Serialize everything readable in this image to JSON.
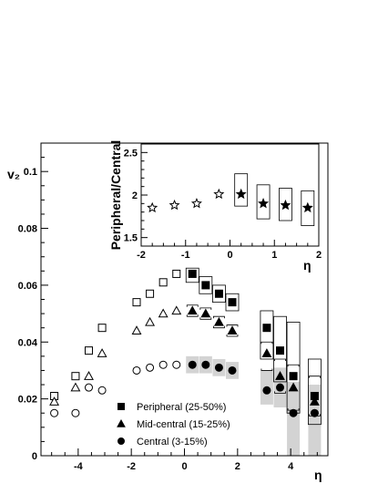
{
  "chart_data": [
    {
      "type": "scatter",
      "title": "",
      "xlabel": "η",
      "ylabel": "v₂",
      "xlim": [
        -5.4,
        5.4
      ],
      "ylim": [
        0,
        0.11
      ],
      "x_ticks": [
        -4,
        -2,
        0,
        2,
        4
      ],
      "x_tick_labels": [
        "-4",
        "-2",
        "0",
        "2",
        "4"
      ],
      "y_ticks": [
        0,
        0.02,
        0.04,
        0.06,
        0.08,
        0.1
      ],
      "y_tick_labels": [
        "0",
        "0.02",
        "0.04",
        "0.06",
        "0.08",
        "0.1"
      ],
      "grid": false,
      "legend_position": "bottom-center",
      "series": [
        {
          "name": "Peripheral (25-50%)",
          "marker": "square",
          "color": "#000000",
          "open": [
            [
              -4.9,
              0.021
            ],
            [
              -4.1,
              0.028
            ],
            [
              -3.6,
              0.037
            ],
            [
              -3.1,
              0.045
            ],
            [
              -1.8,
              0.054
            ],
            [
              -1.3,
              0.057
            ],
            [
              -0.8,
              0.061
            ],
            [
              -0.3,
              0.064
            ]
          ],
          "filled": [
            [
              0.3,
              0.064
            ],
            [
              0.8,
              0.06
            ],
            [
              1.3,
              0.057
            ],
            [
              1.8,
              0.054
            ],
            [
              3.1,
              0.045
            ],
            [
              3.6,
              0.037
            ],
            [
              4.1,
              0.028
            ],
            [
              4.9,
              0.021
            ]
          ]
        },
        {
          "name": "Mid-central (15-25%)",
          "marker": "triangle",
          "color": "#000000",
          "open": [
            [
              -4.9,
              0.019
            ],
            [
              -4.1,
              0.024
            ],
            [
              -3.6,
              0.028
            ],
            [
              -3.1,
              0.036
            ],
            [
              -1.8,
              0.044
            ],
            [
              -1.3,
              0.047
            ],
            [
              -0.8,
              0.05
            ],
            [
              -0.3,
              0.051
            ]
          ],
          "filled": [
            [
              0.3,
              0.051
            ],
            [
              0.8,
              0.05
            ],
            [
              1.3,
              0.047
            ],
            [
              1.8,
              0.044
            ],
            [
              3.1,
              0.036
            ],
            [
              3.6,
              0.028
            ],
            [
              4.1,
              0.024
            ],
            [
              4.9,
              0.019
            ]
          ]
        },
        {
          "name": "Central (3-15%)",
          "marker": "circle",
          "color": "#000000",
          "open": [
            [
              -4.9,
              0.015
            ],
            [
              -4.1,
              0.015
            ],
            [
              -3.6,
              0.024
            ],
            [
              -3.1,
              0.023
            ],
            [
              -1.8,
              0.03
            ],
            [
              -1.3,
              0.031
            ],
            [
              -0.8,
              0.032
            ],
            [
              -0.3,
              0.032
            ]
          ],
          "filled": [
            [
              0.3,
              0.032
            ],
            [
              0.8,
              0.032
            ],
            [
              1.3,
              0.031
            ],
            [
              1.8,
              0.03
            ],
            [
              3.1,
              0.023
            ],
            [
              3.6,
              0.024
            ],
            [
              4.1,
              0.015
            ],
            [
              4.9,
              0.015
            ]
          ]
        }
      ],
      "systematics": {
        "peripheral_boxes": [
          [
            0.3,
            0.061,
            0.066
          ],
          [
            0.8,
            0.057,
            0.063
          ],
          [
            1.3,
            0.054,
            0.06
          ],
          [
            1.8,
            0.051,
            0.057
          ],
          [
            3.1,
            0.034,
            0.051
          ],
          [
            3.6,
            0.026,
            0.049
          ],
          [
            4.1,
            0.015,
            0.047
          ],
          [
            4.9,
            0.011,
            0.034
          ]
        ],
        "midcentral_brackets": [
          [
            0.3,
            0.049,
            0.053
          ],
          [
            0.8,
            0.048,
            0.052
          ],
          [
            1.3,
            0.045,
            0.049
          ],
          [
            1.8,
            0.042,
            0.046
          ],
          [
            3.1,
            0.03,
            0.04
          ],
          [
            3.6,
            0.022,
            0.034
          ],
          [
            4.1,
            0.016,
            0.032
          ],
          [
            4.9,
            0.014,
            0.028
          ]
        ],
        "central_bands": [
          [
            0.3,
            0.029,
            0.035
          ],
          [
            0.8,
            0.029,
            0.035
          ],
          [
            1.3,
            0.028,
            0.034
          ],
          [
            1.8,
            0.027,
            0.033
          ],
          [
            3.1,
            0.018,
            0.03
          ],
          [
            3.6,
            0.017,
            0.031
          ],
          [
            4.1,
            0.0,
            0.026
          ],
          [
            4.9,
            0.0,
            0.025
          ]
        ],
        "band_color": "#d3d3d3"
      }
    },
    {
      "type": "scatter",
      "title": "",
      "xlabel": "η",
      "ylabel": "Peripheral/Central",
      "xlim": [
        -2,
        2
      ],
      "ylim": [
        1.4,
        2.6
      ],
      "x_ticks": [
        -2,
        -1,
        0,
        1,
        2
      ],
      "x_tick_labels": [
        "-2",
        "-1",
        "0",
        "1",
        "2"
      ],
      "y_ticks": [
        1.5,
        2,
        2.5
      ],
      "y_tick_labels": [
        "1.5",
        "2",
        "2.5"
      ],
      "grid": false,
      "series": [
        {
          "name": "",
          "marker": "star",
          "color": "#000000",
          "open": [
            [
              -1.75,
              1.85
            ],
            [
              -1.25,
              1.88
            ],
            [
              -0.75,
              1.9
            ],
            [
              -0.25,
              2.01
            ]
          ],
          "filled": [
            [
              0.25,
              2.01
            ],
            [
              0.75,
              1.9
            ],
            [
              1.25,
              1.88
            ],
            [
              1.75,
              1.85
            ]
          ],
          "boxes": [
            [
              0.25,
              1.87,
              2.25
            ],
            [
              0.75,
              1.72,
              2.12
            ],
            [
              1.25,
              1.7,
              2.08
            ],
            [
              1.75,
              1.64,
              2.05
            ]
          ]
        }
      ]
    }
  ]
}
